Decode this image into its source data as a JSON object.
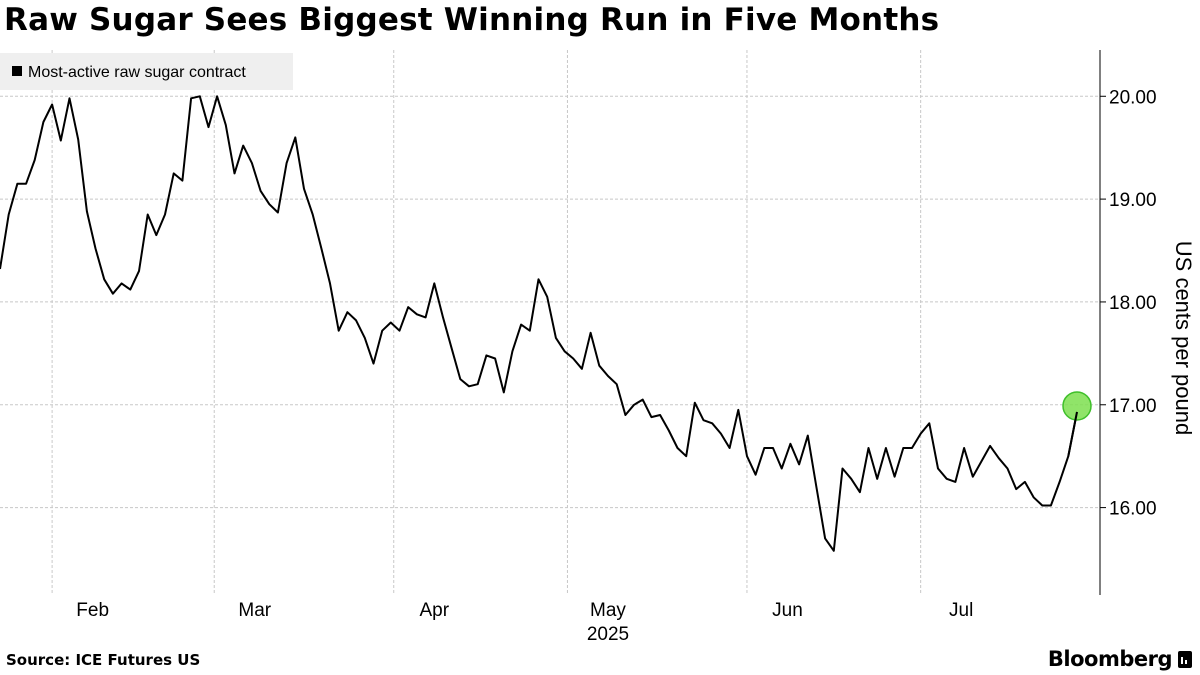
{
  "title": "Raw Sugar Sees Biggest Winning Run in Five Months",
  "source": "Source: ICE Futures US",
  "brand": "Bloomberg",
  "colors": {
    "line": "#000000",
    "grid": "#c8c8c8",
    "highlight": "#7ddf4f",
    "legend_bg": "#efefef"
  },
  "chart_data": {
    "type": "line",
    "title": "Raw Sugar Sees Biggest Winning Run in Five Months",
    "xlabel": "",
    "ylabel": "US cents per pound",
    "y_axis_position": "right",
    "ylim": [
      15.15,
      20.45
    ],
    "yticks": [
      "16.00",
      "17.00",
      "18.00",
      "19.00",
      "20.00"
    ],
    "x_ticks": [
      "Feb",
      "Mar",
      "Apr",
      "May",
      "Jun",
      "Jul"
    ],
    "x_year_label": "2025",
    "legend": {
      "position": "top-left",
      "entries": [
        "Most-active raw sugar contract"
      ]
    },
    "grid": true,
    "series": [
      {
        "name": "Most-active raw sugar contract",
        "x_start": "2025-01-23",
        "x_end": "2025-07-28",
        "values": [
          18.32,
          18.85,
          19.15,
          19.15,
          19.38,
          19.75,
          19.92,
          19.57,
          19.98,
          19.58,
          18.88,
          18.52,
          18.22,
          18.08,
          18.18,
          18.12,
          18.3,
          18.85,
          18.65,
          18.85,
          19.25,
          19.18,
          19.98,
          20.0,
          19.7,
          20.0,
          19.72,
          19.25,
          19.52,
          19.35,
          19.08,
          18.95,
          18.87,
          19.35,
          19.6,
          19.1,
          18.85,
          18.52,
          18.18,
          17.72,
          17.9,
          17.82,
          17.65,
          17.4,
          17.72,
          17.8,
          17.72,
          17.95,
          17.88,
          17.85,
          18.18,
          17.85,
          17.55,
          17.25,
          17.18,
          17.2,
          17.48,
          17.45,
          17.12,
          17.52,
          17.78,
          17.72,
          18.22,
          18.05,
          17.65,
          17.52,
          17.45,
          17.35,
          17.7,
          17.38,
          17.28,
          17.2,
          16.9,
          17.0,
          17.05,
          16.88,
          16.9,
          16.75,
          16.58,
          16.5,
          17.02,
          16.85,
          16.82,
          16.72,
          16.58,
          16.95,
          16.5,
          16.32,
          16.58,
          16.58,
          16.38,
          16.62,
          16.42,
          16.7,
          16.2,
          15.7,
          15.58,
          16.38,
          16.28,
          16.15,
          16.58,
          16.28,
          16.58,
          16.3,
          16.58,
          16.58,
          16.72,
          16.82,
          16.38,
          16.28,
          16.25,
          16.58,
          16.3,
          16.45,
          16.6,
          16.48,
          16.38,
          16.18,
          16.25,
          16.1,
          16.02,
          16.02,
          16.25,
          16.5,
          16.93
        ]
      }
    ],
    "highlight_last_point": true
  }
}
